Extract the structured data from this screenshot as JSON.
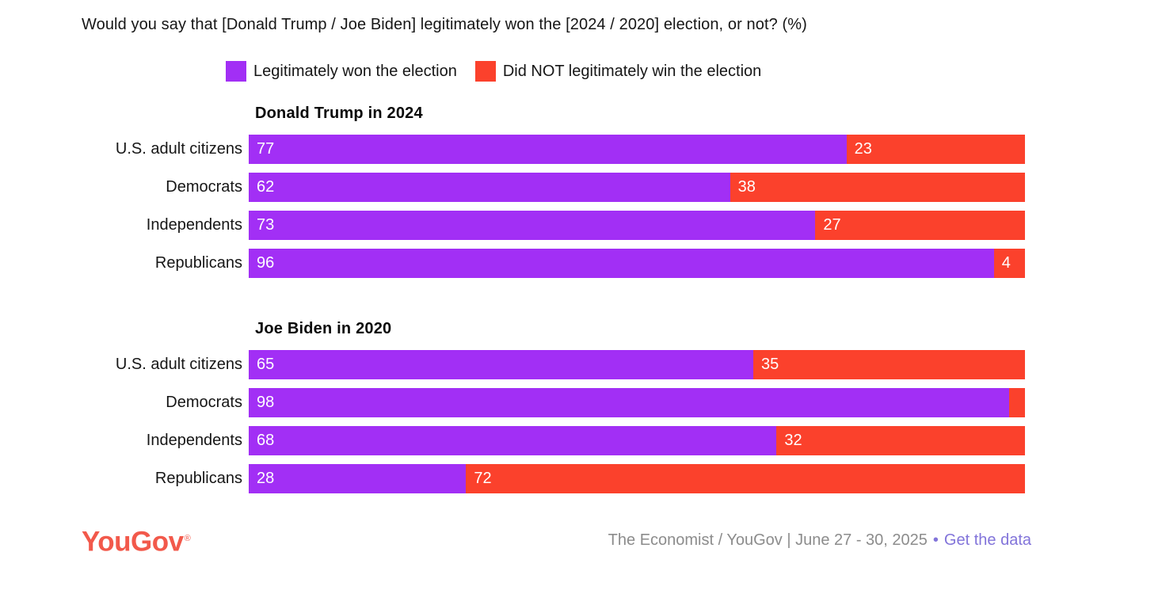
{
  "title": "Would you say that [Donald Trump / Joe Biden] legitimately won the [2024 / 2020] election, or not? (%)",
  "legend": {
    "items": [
      {
        "label": "Legitimately won the election",
        "color": "#A22FF5"
      },
      {
        "label": "Did NOT legitimately win the election",
        "color": "#FB412C"
      }
    ]
  },
  "chart_data": [
    {
      "type": "bar",
      "orientation": "horizontal",
      "stacked": true,
      "title": "Donald Trump in 2024",
      "categories": [
        "U.S. adult citizens",
        "Democrats",
        "Independents",
        "Republicans"
      ],
      "series": [
        {
          "name": "Legitimately won the election",
          "color": "#A22FF5",
          "values": [
            77,
            62,
            73,
            96
          ]
        },
        {
          "name": "Did NOT legitimately win the election",
          "color": "#FB412C",
          "values": [
            23,
            38,
            27,
            4
          ]
        }
      ],
      "xlim": [
        0,
        100
      ],
      "grid": false,
      "axis_labels_shown": false,
      "value_label_min": 3
    },
    {
      "type": "bar",
      "orientation": "horizontal",
      "stacked": true,
      "title": "Joe Biden in 2020",
      "categories": [
        "U.S. adult citizens",
        "Democrats",
        "Independents",
        "Republicans"
      ],
      "series": [
        {
          "name": "Legitimately won the election",
          "color": "#A22FF5",
          "values": [
            65,
            98,
            68,
            28
          ]
        },
        {
          "name": "Did NOT legitimately win the election",
          "color": "#FB412C",
          "values": [
            35,
            2,
            32,
            72
          ]
        }
      ],
      "xlim": [
        0,
        100
      ],
      "grid": false,
      "axis_labels_shown": false,
      "value_label_min": 3
    }
  ],
  "footer": {
    "logo": "YouGov",
    "logo_mark": "®",
    "source": "The Economist / YouGov | June 27 - 30, 2025",
    "separator": "•",
    "link": "Get the data"
  },
  "colors": {
    "legitimate": "#A22FF5",
    "not_legitimate": "#FB412C",
    "bar_value_text": "#FFFFFF",
    "logo": "#F2594B",
    "source_text": "#8C8C8C",
    "link": "#8274DA"
  }
}
